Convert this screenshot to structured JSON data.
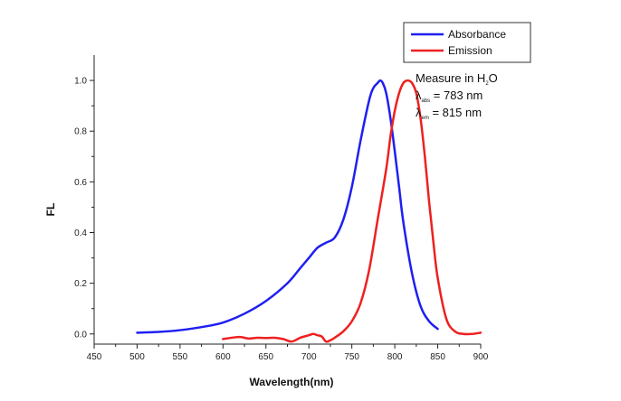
{
  "chart_data": {
    "type": "line",
    "title": "",
    "xlabel": "Wavelength(nm)",
    "ylabel": "FL",
    "xlim": [
      450,
      900
    ],
    "ylim": [
      -0.04,
      1.1
    ],
    "x_ticks": [
      450,
      500,
      550,
      600,
      650,
      700,
      750,
      800,
      850,
      900
    ],
    "y_ticks": [
      0.0,
      0.2,
      0.4,
      0.6,
      0.8,
      1.0
    ],
    "y_tick_labels": [
      "0.0",
      "0.2",
      "0.4",
      "0.6",
      "0.8",
      "1.0"
    ],
    "grid": false,
    "legend_position": "top-right",
    "series": [
      {
        "name": "Absorbance",
        "color": "#1f1ff2",
        "x": [
          500,
          525,
          550,
          575,
          600,
          625,
          650,
          675,
          690,
          700,
          710,
          720,
          730,
          740,
          750,
          760,
          770,
          775,
          780,
          783,
          786,
          790,
          795,
          800,
          805,
          810,
          820,
          830,
          840,
          850
        ],
        "y": [
          0.005,
          0.008,
          0.015,
          0.027,
          0.045,
          0.08,
          0.13,
          0.2,
          0.26,
          0.3,
          0.34,
          0.36,
          0.38,
          0.45,
          0.58,
          0.76,
          0.92,
          0.97,
          0.99,
          1.0,
          0.99,
          0.95,
          0.85,
          0.72,
          0.58,
          0.44,
          0.24,
          0.11,
          0.05,
          0.02
        ]
      },
      {
        "name": "Emission",
        "color": "#ee2020",
        "x": [
          600,
          610,
          620,
          630,
          640,
          650,
          660,
          670,
          680,
          690,
          700,
          705,
          710,
          715,
          720,
          725,
          730,
          740,
          750,
          760,
          770,
          780,
          790,
          795,
          800,
          805,
          810,
          815,
          820,
          825,
          830,
          835,
          840,
          845,
          850,
          860,
          870,
          880,
          890,
          900
        ],
        "y": [
          -0.02,
          -0.015,
          -0.012,
          -0.018,
          -0.015,
          -0.016,
          -0.015,
          -0.02,
          -0.03,
          -0.015,
          -0.005,
          0.0,
          -0.005,
          -0.01,
          -0.03,
          -0.025,
          -0.015,
          0.01,
          0.05,
          0.12,
          0.25,
          0.45,
          0.65,
          0.78,
          0.88,
          0.95,
          0.99,
          1.0,
          0.99,
          0.95,
          0.85,
          0.7,
          0.52,
          0.36,
          0.22,
          0.06,
          0.01,
          0.0,
          0.0,
          0.005
        ]
      }
    ],
    "annotations": [
      {
        "main": "Measure in H",
        "sub": "2",
        "tail": "O"
      },
      {
        "main": "λ",
        "sub": "abs",
        "tail": " = 783 nm"
      },
      {
        "main": "λ",
        "sub": "em",
        "tail": " = 815 nm"
      }
    ]
  }
}
